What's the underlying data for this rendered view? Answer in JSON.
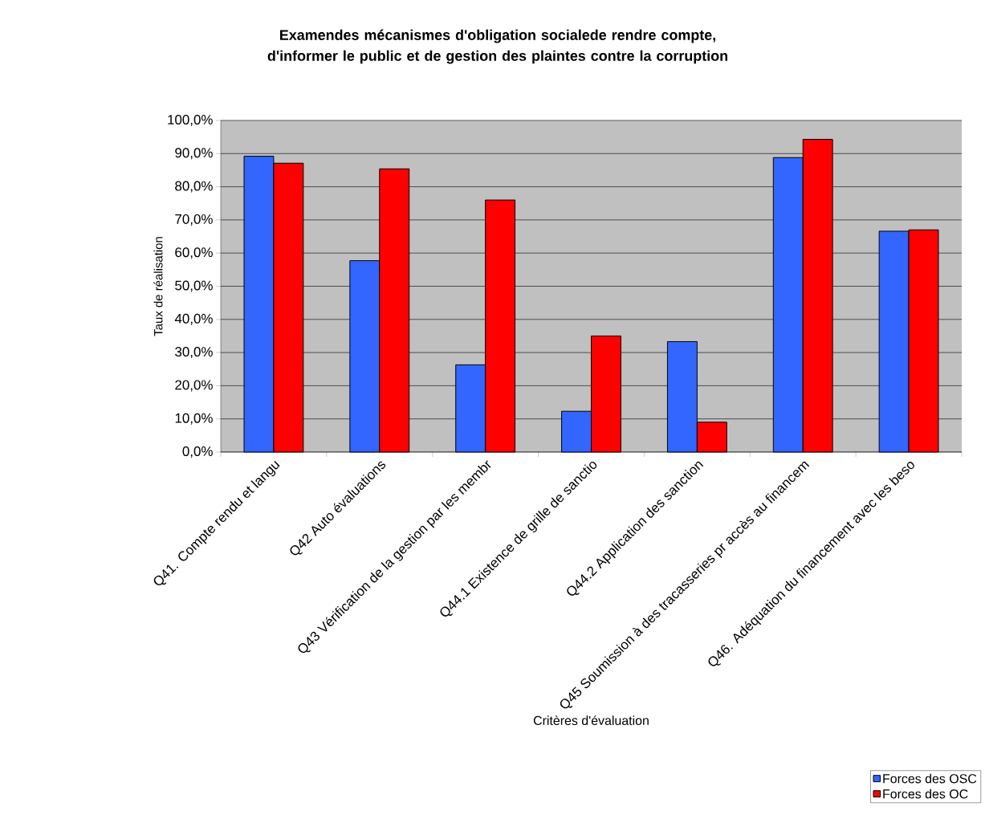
{
  "chart_data": {
    "type": "bar",
    "title": "Examendes mécanismes d'obligation socialede rendre compte, d'informer le public et de gestion des plaintes contre la corruption",
    "xlabel": "Critères d'évaluation",
    "ylabel": "Taux de réalisation",
    "categories": [
      "Q41. Compte rendu et langu",
      "Q42 Auto évaluations",
      "Q43 Vérification de la gestion par les membr",
      "Q44.1 Existence de grille de sanctio",
      "Q44.2 Application des sanction",
      "Q45 Soumission à des tracasseries pr accès au financem",
      "Q46. Adéquation du financement avec les beso"
    ],
    "series": [
      {
        "name": "Forces des OSC",
        "color": "#3366ff",
        "values": [
          89.2,
          57.7,
          26.3,
          12.3,
          33.3,
          88.8,
          66.6
        ]
      },
      {
        "name": "Forces des OC",
        "color": "#ff0000",
        "values": [
          87.1,
          85.4,
          76.0,
          35.0,
          9.0,
          94.3,
          67.0
        ]
      }
    ],
    "ylim": [
      0,
      100
    ],
    "yticks": [
      {
        "value": 0,
        "label": "0,0%"
      },
      {
        "value": 10,
        "label": "10,0%"
      },
      {
        "value": 20,
        "label": "20,0%"
      },
      {
        "value": 30,
        "label": "30,0%"
      },
      {
        "value": 40,
        "label": "40,0%"
      },
      {
        "value": 50,
        "label": "50,0%"
      },
      {
        "value": 60,
        "label": "60,0%"
      },
      {
        "value": 70,
        "label": "70,0%"
      },
      {
        "value": 80,
        "label": "80,0%"
      },
      {
        "value": 90,
        "label": "90,0%"
      },
      {
        "value": 100,
        "label": "100,0%"
      }
    ],
    "grid": "y",
    "legend": "bottom right"
  }
}
